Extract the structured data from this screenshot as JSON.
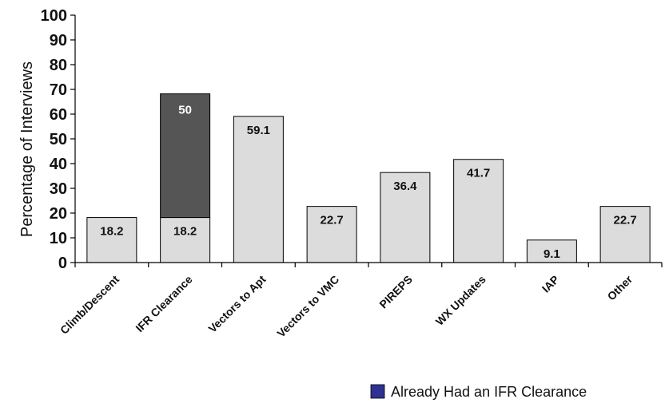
{
  "chart_data": {
    "type": "bar",
    "stacked": true,
    "title": "",
    "xlabel": "",
    "ylabel": "Percentage of Interviews",
    "ylim": [
      0,
      100
    ],
    "yticks": [
      0,
      10,
      20,
      30,
      40,
      50,
      60,
      70,
      80,
      90,
      100
    ],
    "grid": false,
    "categories": [
      "Climb/Descent",
      "IFR Clearance",
      "Vectors to Apt",
      "Vectors to VMC",
      "PIREPS",
      "WX Updates",
      "IAP",
      "Other"
    ],
    "series": [
      {
        "values": [
          18.2,
          18.2,
          59.1,
          22.7,
          36.4,
          41.7,
          9.1,
          22.7
        ],
        "color": "#dcdcdc"
      },
      {
        "name": "Already Had an IFR Clearance",
        "values": [
          null,
          50,
          null,
          null,
          null,
          null,
          null,
          null
        ],
        "color": "#555555"
      }
    ],
    "legend": {
      "position": "bottom-right",
      "swatch_color": "#2e3192",
      "label": "Already Had an IFR Clearance"
    }
  }
}
